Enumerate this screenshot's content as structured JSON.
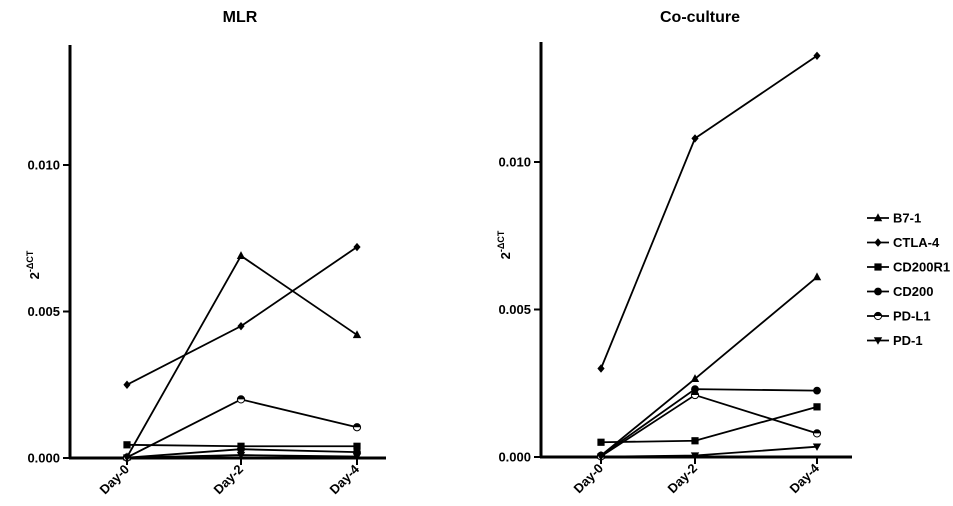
{
  "chart_data": [
    {
      "type": "line",
      "title": "MLR",
      "ylabel_base": "2",
      "ylabel_exp": "-ΔCT",
      "categories": [
        "Day-0",
        "Day-2",
        "Day-4"
      ],
      "yticks": [
        "0.000",
        "0.005",
        "0.010"
      ],
      "ylim": [
        0,
        0.0138
      ],
      "legend": "none",
      "series": [
        {
          "name": "B7-1",
          "marker": "triangle",
          "values": [
            3e-05,
            0.0069,
            0.0042
          ]
        },
        {
          "name": "CTLA-4",
          "marker": "diamond",
          "values": [
            0.0025,
            0.0045,
            0.0072
          ]
        },
        {
          "name": "CD200R1",
          "marker": "square",
          "values": [
            0.00045,
            0.0004,
            0.0004
          ]
        },
        {
          "name": "CD200",
          "marker": "circle",
          "values": [
            1e-05,
            0.0003,
            0.0002
          ]
        },
        {
          "name": "PD-L1",
          "marker": "half-circle",
          "values": [
            2e-05,
            0.002,
            0.00105
          ]
        },
        {
          "name": "PD-1",
          "marker": "triangle-down",
          "values": [
            1e-05,
            0.0001,
            5e-05
          ]
        }
      ]
    },
    {
      "type": "line",
      "title": "Co-culture",
      "ylabel_base": "2",
      "ylabel_exp": "-ΔCT",
      "categories": [
        "Day-0",
        "Day-2",
        "Day-4"
      ],
      "yticks": [
        "0.000",
        "0.005",
        "0.010"
      ],
      "ylim": [
        0,
        0.0142
      ],
      "legend": "right",
      "series": [
        {
          "name": "B7-1",
          "marker": "triangle",
          "values": [
            5e-05,
            0.00265,
            0.0061
          ]
        },
        {
          "name": "CTLA-4",
          "marker": "diamond",
          "values": [
            0.003,
            0.0108,
            0.0136
          ]
        },
        {
          "name": "CD200R1",
          "marker": "square",
          "values": [
            0.0005,
            0.00055,
            0.0017
          ]
        },
        {
          "name": "CD200",
          "marker": "circle",
          "values": [
            5e-05,
            0.0023,
            0.00225
          ]
        },
        {
          "name": "PD-L1",
          "marker": "half-circle",
          "values": [
            2e-05,
            0.0021,
            0.0008
          ]
        },
        {
          "name": "PD-1",
          "marker": "triangle-down",
          "values": [
            1e-05,
            5e-05,
            0.00035
          ]
        }
      ]
    }
  ]
}
